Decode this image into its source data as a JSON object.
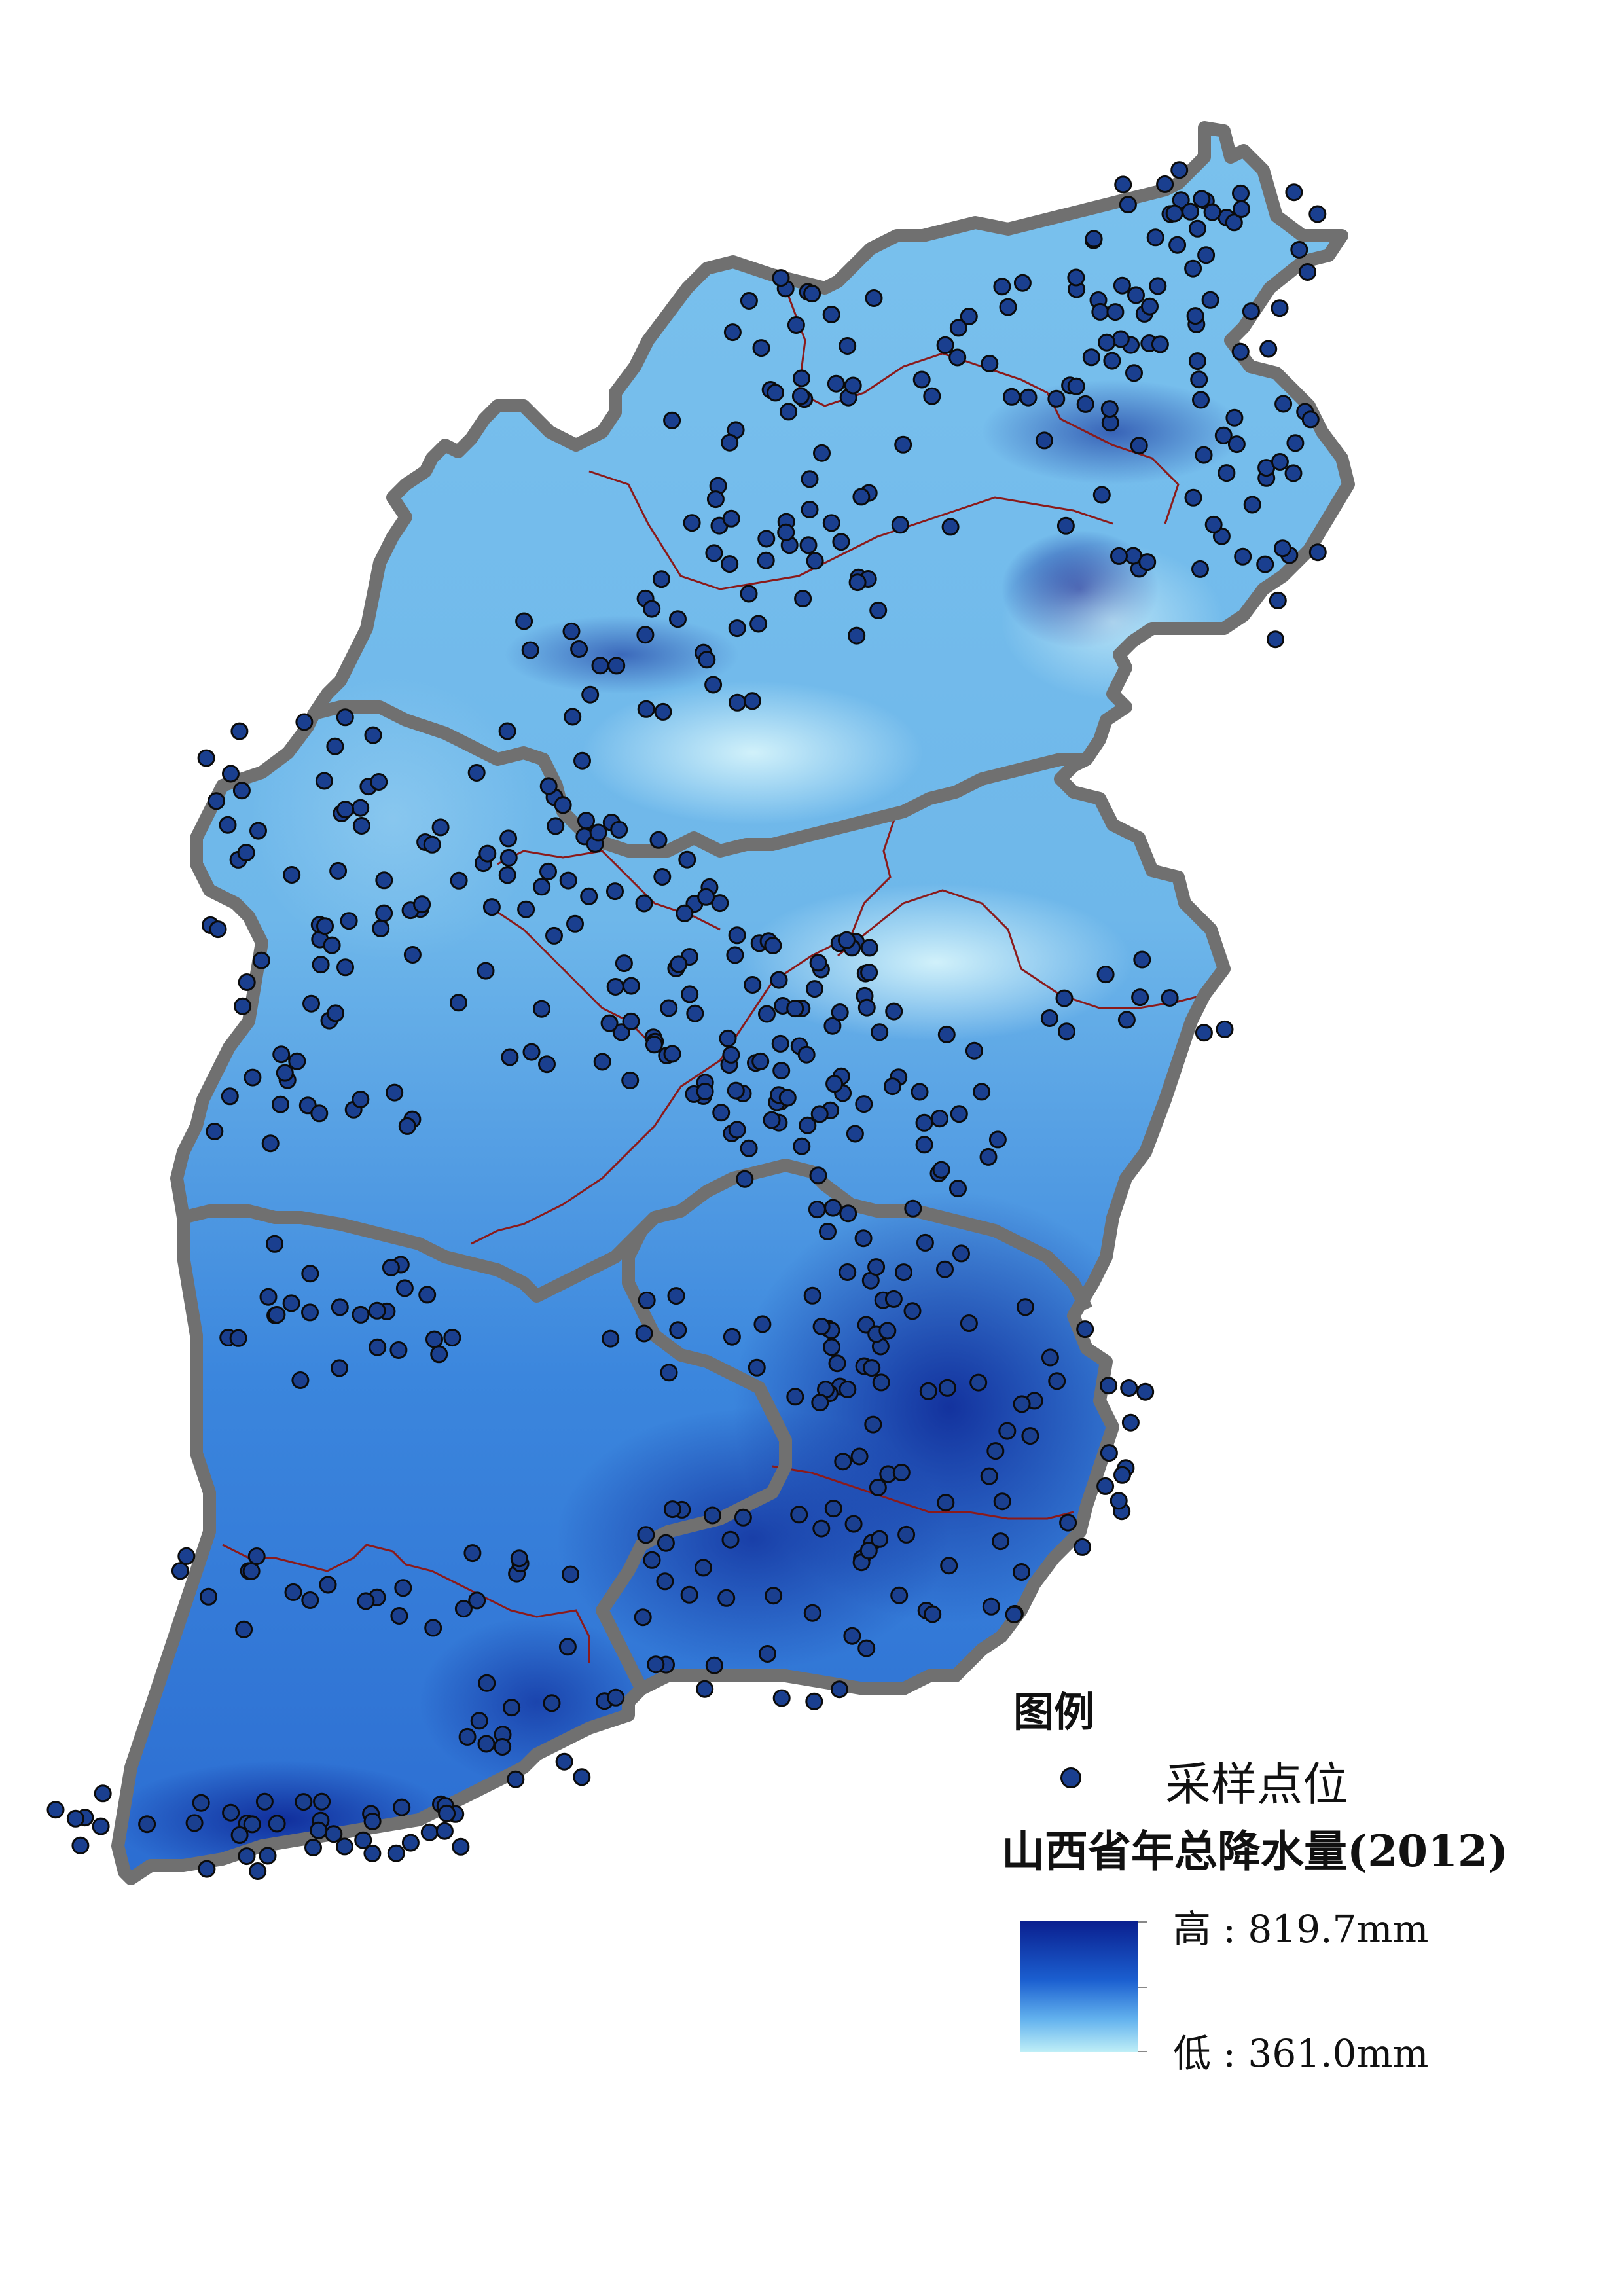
{
  "map": {
    "raster_colors": {
      "high": "#0a1f8f",
      "mid": "#2a7ee0",
      "low": "#bfeff7"
    },
    "boundary_color": "#707070",
    "internal_boundary_color": "#8b1a1a",
    "point_color": "#1a3f8f",
    "point_outline": "#0b0b0b"
  },
  "legend": {
    "title": "图例",
    "point_label": "采样点位",
    "raster_title": "山西省年总降水量(2012)",
    "high_label": "高 : 819.7mm",
    "low_label": "低 : 361.0mm"
  }
}
